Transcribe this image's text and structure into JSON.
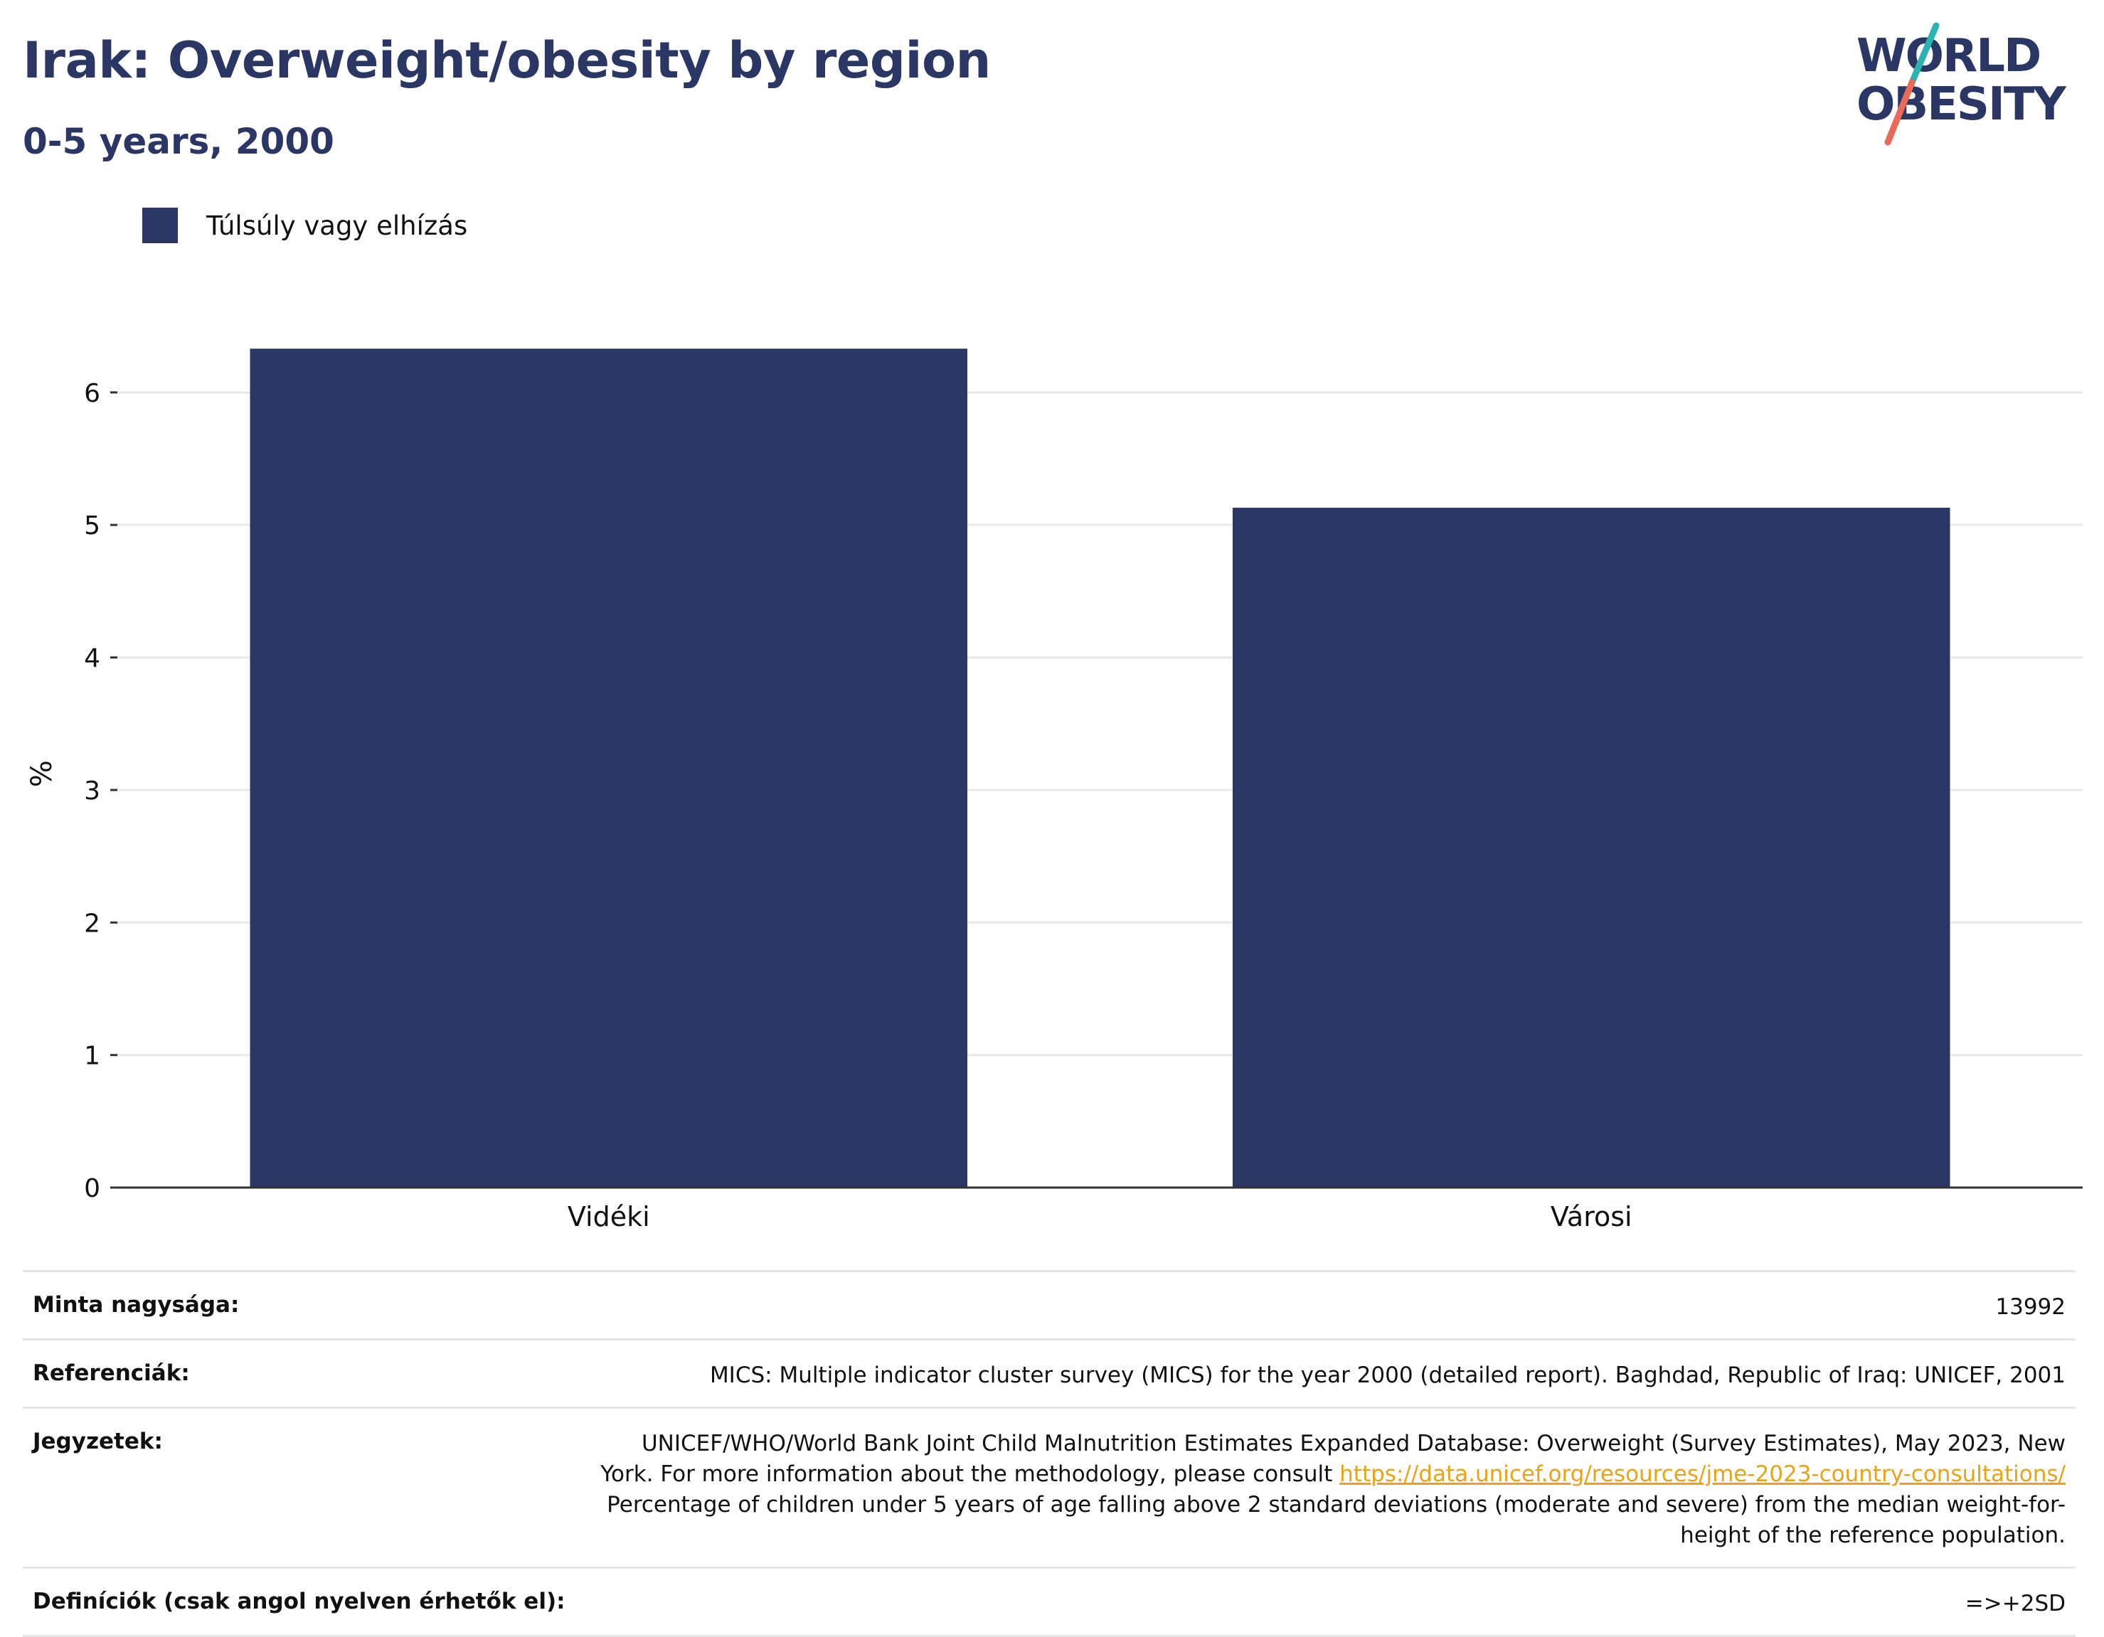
{
  "header": {
    "title": "Irak: Overweight/obesity by region",
    "subtitle": "0-5 years, 2000"
  },
  "logo": {
    "line1": "WORLD",
    "line2": "OBESITY",
    "colors": {
      "text": "#2a3663",
      "slash_top": "#2ab3b1",
      "slash_bottom": "#e86a57"
    }
  },
  "colors": {
    "bar": "#2a3663",
    "grid": "#e9e9e9",
    "axis": "#333333",
    "link": "#e8a317"
  },
  "chart_data": {
    "type": "bar",
    "categories": [
      "Vidéki",
      "Városi"
    ],
    "series": [
      {
        "name": "Túlsúly vagy elhízás",
        "values": [
          6.33,
          5.13
        ]
      }
    ],
    "ylabel": "%",
    "ylim": [
      0,
      6.6
    ],
    "yticks": [
      0,
      1,
      2,
      3,
      4,
      5,
      6
    ],
    "grid": true,
    "legend": "top-left"
  },
  "info": {
    "sample": {
      "label": "Minta nagysága:",
      "value": "13992"
    },
    "references": {
      "label": "Referenciák:",
      "value": "MICS: Multiple indicator cluster survey (MICS) for the year 2000 (detailed report). Baghdad, Republic of Iraq: UNICEF, 2001"
    },
    "notes": {
      "label": "Jegyzetek:",
      "text_before": "UNICEF/WHO/World Bank Joint Child Malnutrition Estimates Expanded Database: Overweight (Survey Estimates), May 2023, New York. For more information about the methodology, please consult ",
      "link": "https://data.unicef.org/resources/jme-2023-country-consultations/",
      "text_after": " Percentage of children under 5 years of age falling above 2 standard deviations (moderate and severe) from the median weight-for-height of the reference population."
    },
    "definitions": {
      "label": "Definíciók (csak angol nyelven érhetők el):",
      "value": "=>+2SD"
    }
  }
}
